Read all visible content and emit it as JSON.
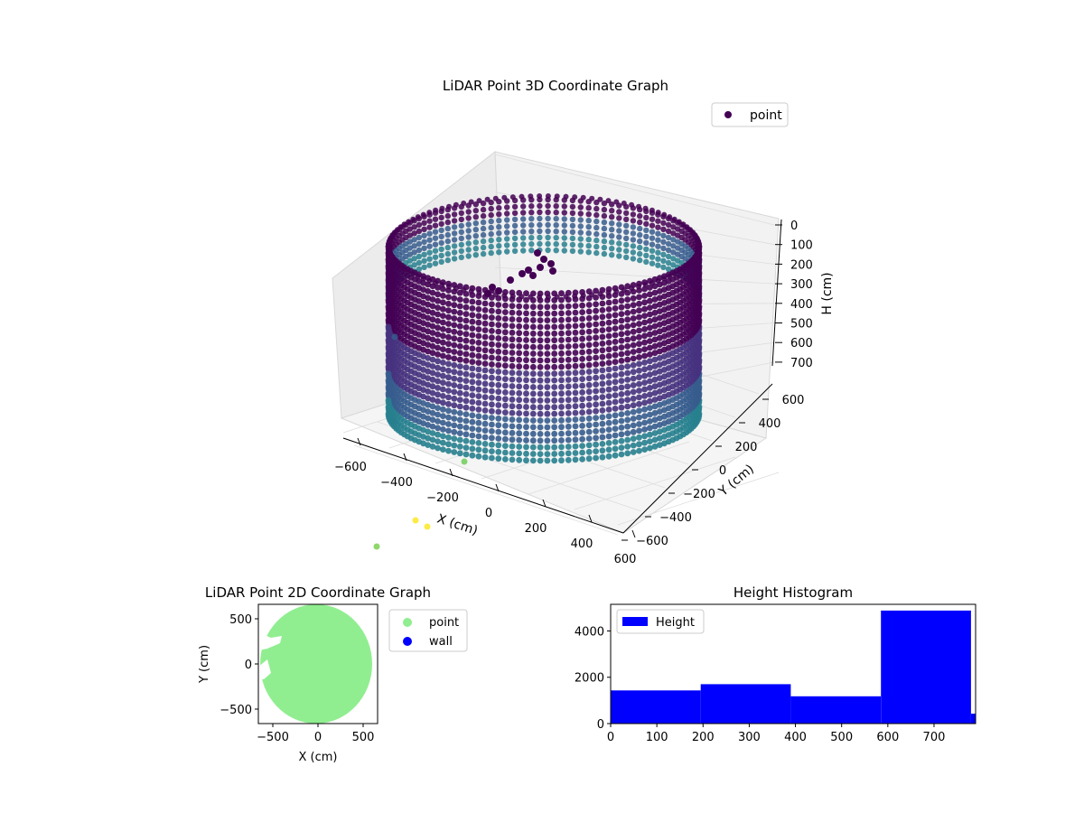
{
  "chart_data": [
    {
      "type": "scatter",
      "projection": "3d",
      "title": "LiDAR Point 3D Coordinate Graph",
      "xlabel": "X (cm)",
      "ylabel": "Y (cm)",
      "zlabel": "H (cm)",
      "xticks": [
        "−600",
        "−400",
        "−200",
        "0",
        "200",
        "400",
        "600"
      ],
      "yticks": [
        "−600",
        "−400",
        "−200",
        "0",
        "200",
        "400",
        "600"
      ],
      "zticks": [
        "0",
        "100",
        "200",
        "300",
        "400",
        "500",
        "600",
        "700"
      ],
      "xlim": [
        -650,
        650
      ],
      "ylim": [
        -650,
        650
      ],
      "zlim": [
        0,
        750
      ],
      "zaxis_inverted": true,
      "colormap": "viridis",
      "legend": {
        "position": "upper-right",
        "entries": [
          "point"
        ]
      },
      "marker_color": "#440154",
      "grid": true,
      "description_shape": "cylindrical wall of points, radius about 550 cm, heights 0 to 750 cm"
    },
    {
      "type": "scatter",
      "title": "LiDAR Point 2D Coordinate Graph",
      "xlabel": "X (cm)",
      "ylabel": "Y (cm)",
      "xticks": [
        "−500",
        "0",
        "500"
      ],
      "yticks": [
        "500",
        "0",
        "−500"
      ],
      "xlim": [
        -660,
        660
      ],
      "ylim": [
        -660,
        660
      ],
      "series": [
        {
          "name": "point",
          "color": "#90ee90"
        },
        {
          "name": "wall",
          "color": "#0000ff"
        }
      ],
      "legend": {
        "position": "outside-right",
        "entries": [
          "point",
          "wall"
        ]
      }
    },
    {
      "type": "bar",
      "title": "Height Histogram",
      "xticks": [
        "0",
        "100",
        "200",
        "300",
        "400",
        "500",
        "600",
        "700"
      ],
      "yticks": [
        "0",
        "2000",
        "4000"
      ],
      "xlim": [
        0,
        790
      ],
      "ylim": [
        0,
        5150
      ],
      "color": "#0000ff",
      "series": [
        {
          "name": "Height",
          "bins": [
            {
              "x0": 0,
              "x1": 195,
              "count": 1430
            },
            {
              "x0": 195,
              "x1": 390,
              "count": 1700
            },
            {
              "x0": 390,
              "x1": 585,
              "count": 1180
            },
            {
              "x0": 585,
              "x1": 780,
              "count": 4880
            },
            {
              "x0": 780,
              "x1": 790,
              "count": 430
            }
          ]
        }
      ],
      "legend": {
        "position": "upper-left",
        "entries": [
          "Height"
        ]
      }
    }
  ]
}
